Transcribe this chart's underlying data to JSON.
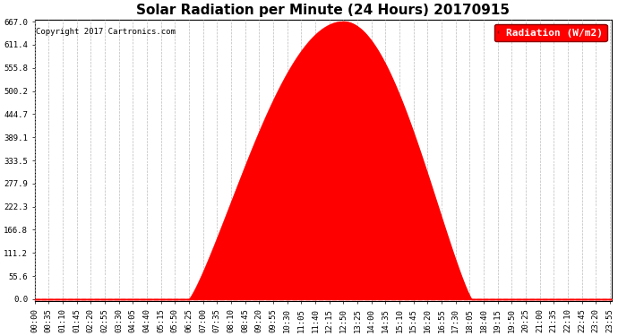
{
  "title": "Solar Radiation per Minute (24 Hours) 20170915",
  "copyright": "Copyright 2017 Cartronics.com",
  "legend_label": "Radiation (W/m2)",
  "background_color": "#ffffff",
  "plot_bg_color": "#ffffff",
  "fill_color": "#ff0000",
  "line_color": "#ff0000",
  "grid_color_x": "#bbbbbb",
  "grid_color_y": "#ffffff",
  "dashed_line_color": "#ff0000",
  "ytick_labels": [
    "0.0",
    "55.6",
    "111.2",
    "166.8",
    "222.3",
    "277.9",
    "333.5",
    "389.1",
    "444.7",
    "500.2",
    "555.8",
    "611.4",
    "667.0"
  ],
  "ytick_values": [
    0.0,
    55.6,
    111.2,
    166.8,
    222.3,
    277.9,
    333.5,
    389.1,
    444.7,
    500.2,
    555.8,
    611.4,
    667.0
  ],
  "ymax": 667.0,
  "ymin": 0.0,
  "sunrise_minute": 385,
  "sunset_minute": 1090,
  "peak_minute": 770,
  "peak_value": 667.0,
  "total_minutes": 1440,
  "x_tick_interval": 35,
  "title_fontsize": 11,
  "legend_fontsize": 8,
  "tick_fontsize": 6.5
}
